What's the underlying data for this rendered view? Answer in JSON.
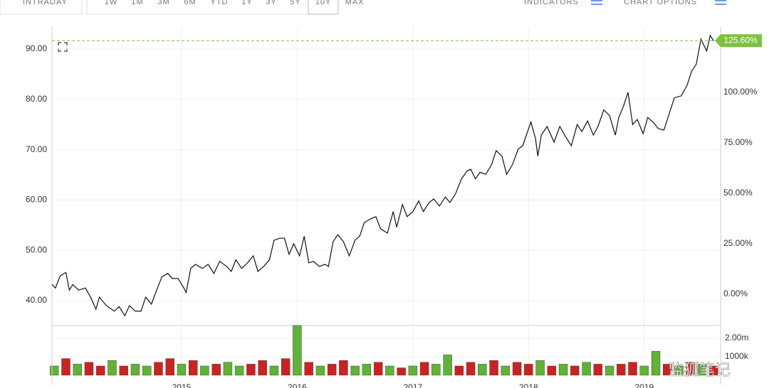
{
  "toolbar": {
    "intraday": "INTRADAY",
    "ranges": [
      "1W",
      "1M",
      "3M",
      "6M",
      "YTD",
      "1Y",
      "3Y",
      "5Y",
      "10Y",
      "MAX"
    ],
    "indicators": "INDICATORS",
    "chart_options": "CHART OPTIONS"
  },
  "chart_data": [
    {
      "type": "line",
      "color": "#111111",
      "grid": true,
      "x": [
        2013.88,
        2013.91,
        2013.95,
        2014.0,
        2014.03,
        2014.06,
        2014.11,
        2014.17,
        2014.22,
        2014.26,
        2014.29,
        2014.35,
        2014.42,
        2014.46,
        2014.51,
        2014.55,
        2014.6,
        2014.65,
        2014.69,
        2014.74,
        2014.78,
        2014.83,
        2014.88,
        2014.92,
        2014.97,
        2015.02,
        2015.04,
        2015.08,
        2015.12,
        2015.18,
        2015.23,
        2015.28,
        2015.33,
        2015.39,
        2015.43,
        2015.47,
        2015.52,
        2015.57,
        2015.62,
        2015.66,
        2015.71,
        2015.76,
        2015.8,
        2015.85,
        2015.89,
        2015.93,
        2015.97,
        2016.02,
        2016.06,
        2016.1,
        2016.14,
        2016.19,
        2016.24,
        2016.27,
        2016.31,
        2016.35,
        2016.4,
        2016.45,
        2016.5,
        2016.54,
        2016.58,
        2016.63,
        2016.68,
        2016.72,
        2016.78,
        2016.83,
        2016.86,
        2016.91,
        2016.95,
        2017.0,
        2017.05,
        2017.09,
        2017.14,
        2017.18,
        2017.23,
        2017.28,
        2017.32,
        2017.37,
        2017.42,
        2017.47,
        2017.5,
        2017.54,
        2017.58,
        2017.63,
        2017.68,
        2017.72,
        2017.77,
        2017.81,
        2017.86,
        2017.91,
        2017.95,
        2018.02,
        2018.06,
        2018.08,
        2018.11,
        2018.16,
        2018.22,
        2018.27,
        2018.32,
        2018.37,
        2018.42,
        2018.46,
        2018.51,
        2018.56,
        2018.6,
        2018.65,
        2018.7,
        2018.75,
        2018.78,
        2018.82,
        2018.86,
        2018.9,
        2018.94,
        2018.99,
        2019.03,
        2019.08,
        2019.12,
        2019.17,
        2019.22,
        2019.26,
        2019.32,
        2019.37,
        2019.41,
        2019.45,
        2019.49,
        2019.54,
        2019.57,
        2019.6
      ],
      "values": [
        43.2,
        42.5,
        44.9,
        45.6,
        42.1,
        43.2,
        42.1,
        42.5,
        40.4,
        38.3,
        40.7,
        39.0,
        37.9,
        38.8,
        37.0,
        39.0,
        37.9,
        37.9,
        40.7,
        39.3,
        41.8,
        44.7,
        45.4,
        44.4,
        44.4,
        42.5,
        41.6,
        46.4,
        47.2,
        46.4,
        47.2,
        45.4,
        47.8,
        46.8,
        45.8,
        48.1,
        46.4,
        47.5,
        48.9,
        45.8,
        46.8,
        48.1,
        52.0,
        52.4,
        52.4,
        49.2,
        51.3,
        48.9,
        52.8,
        47.5,
        47.8,
        46.8,
        47.2,
        46.8,
        51.7,
        53.1,
        51.7,
        48.9,
        52.0,
        52.8,
        55.5,
        56.2,
        56.7,
        54.3,
        53.4,
        57.7,
        54.6,
        59.1,
        56.7,
        57.7,
        59.8,
        57.7,
        59.5,
        60.2,
        58.8,
        60.6,
        59.5,
        61.3,
        64.2,
        65.8,
        66.1,
        64.2,
        65.5,
        65.1,
        67.0,
        69.8,
        68.7,
        65.1,
        67.0,
        70.1,
        70.8,
        75.5,
        72.2,
        68.7,
        72.9,
        74.6,
        71.5,
        74.6,
        72.6,
        70.8,
        75.0,
        73.6,
        75.7,
        72.9,
        74.6,
        77.9,
        76.8,
        72.9,
        76.4,
        78.6,
        81.4,
        75.0,
        76.0,
        73.2,
        76.4,
        75.4,
        74.2,
        73.9,
        77.4,
        80.3,
        80.7,
        82.8,
        85.6,
        87.0,
        92.0,
        89.6,
        92.7,
        91.6
      ],
      "xlim": [
        2013.88,
        2019.66
      ],
      "xticks": [
        2015,
        2016,
        2017,
        2018,
        2019
      ],
      "ylim": [
        35.06,
        94.38
      ],
      "yticks": [
        {
          "value": 40,
          "label": "40.00"
        },
        {
          "value": 50,
          "label": "50.00"
        },
        {
          "value": 60,
          "label": "60.00"
        },
        {
          "value": 70,
          "label": "70.00"
        },
        {
          "value": 80,
          "label": "80.00"
        },
        {
          "value": 90,
          "label": "90.00"
        }
      ],
      "y2lim": [
        -15.5,
        132.4
      ],
      "y2ticks": [
        {
          "value": 0,
          "label": "0.00%"
        },
        {
          "value": 25,
          "label": "25.00%"
        },
        {
          "value": 50,
          "label": "50.00%"
        },
        {
          "value": 75,
          "label": "75.00%"
        },
        {
          "value": 100,
          "label": "100.00%"
        }
      ],
      "annotation": {
        "value": 125.6,
        "label": "125.60%",
        "axis": "y2",
        "color": "#7cc142"
      }
    },
    {
      "type": "bar",
      "x": [
        2013.9,
        2014.0,
        2014.1,
        2014.2,
        2014.3,
        2014.4,
        2014.5,
        2014.6,
        2014.7,
        2014.8,
        2014.9,
        2015.0,
        2015.1,
        2015.2,
        2015.3,
        2015.4,
        2015.5,
        2015.6,
        2015.7,
        2015.8,
        2015.9,
        2016.0,
        2016.1,
        2016.2,
        2016.3,
        2016.4,
        2016.5,
        2016.6,
        2016.7,
        2016.8,
        2016.9,
        2017.0,
        2017.1,
        2017.2,
        2017.3,
        2017.4,
        2017.5,
        2017.6,
        2017.7,
        2017.8,
        2017.9,
        2018.0,
        2018.1,
        2018.2,
        2018.3,
        2018.4,
        2018.5,
        2018.6,
        2018.7,
        2018.8,
        2018.9,
        2019.0,
        2019.1,
        2019.2,
        2019.3,
        2019.4,
        2019.5,
        2019.6
      ],
      "values": [
        0.5,
        0.9,
        0.6,
        0.7,
        0.5,
        0.8,
        0.5,
        0.6,
        0.5,
        0.7,
        0.9,
        0.6,
        0.8,
        0.5,
        0.6,
        0.7,
        0.5,
        0.6,
        0.8,
        0.5,
        0.9,
        2.69,
        0.7,
        0.5,
        0.6,
        0.8,
        0.5,
        0.6,
        0.7,
        0.5,
        0.4,
        0.5,
        0.7,
        0.6,
        1.1,
        0.5,
        0.7,
        0.6,
        0.8,
        0.5,
        0.7,
        0.6,
        0.8,
        0.5,
        0.6,
        0.5,
        0.7,
        0.6,
        0.5,
        0.6,
        0.7,
        0.5,
        1.3,
        0.6,
        0.5,
        0.7,
        0.6,
        0.5
      ],
      "colors": [
        "#5fb336",
        "#cc2222",
        "#5fb336",
        "#cc2222",
        "#cc2222",
        "#5fb336",
        "#cc2222",
        "#5fb336",
        "#5fb336",
        "#cc2222",
        "#cc2222",
        "#5fb336",
        "#cc2222",
        "#5fb336",
        "#cc2222",
        "#5fb336",
        "#5fb336",
        "#cc2222",
        "#cc2222",
        "#5fb336",
        "#cc2222",
        "#5fb336",
        "#cc2222",
        "#5fb336",
        "#cc2222",
        "#cc2222",
        "#5fb336",
        "#5fb336",
        "#cc2222",
        "#5fb336",
        "#cc2222",
        "#5fb336",
        "#cc2222",
        "#5fb336",
        "#5fb336",
        "#cc2222",
        "#cc2222",
        "#5fb336",
        "#cc2222",
        "#5fb336",
        "#cc2222",
        "#cc2222",
        "#5fb336",
        "#cc2222",
        "#5fb336",
        "#cc2222",
        "#5fb336",
        "#cc2222",
        "#5fb336",
        "#cc2222",
        "#cc2222",
        "#5fb336",
        "#5fb336",
        "#cc2222",
        "#5fb336",
        "#cc2222",
        "#5fb336",
        "#cc2222"
      ],
      "xlim": [
        2013.88,
        2019.66
      ],
      "xticks": [
        2015,
        2016,
        2017,
        2018,
        2019
      ],
      "ylim": [
        0,
        2.69
      ],
      "yticks": [
        {
          "value": 1,
          "label": "1000k"
        },
        {
          "value": 2,
          "label": "2.00m"
        }
      ]
    }
  ],
  "watermark": "监狐笔记"
}
